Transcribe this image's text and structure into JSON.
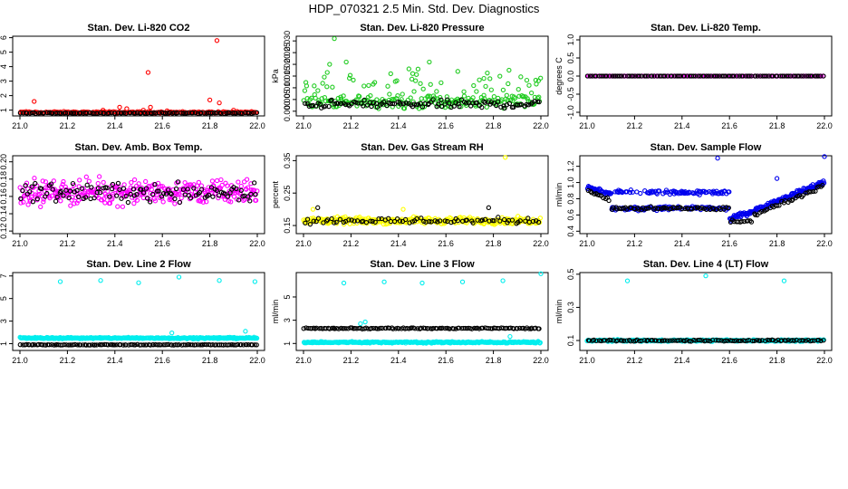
{
  "figure": {
    "title": "HDP_070321  2.5 Min. Std. Dev. Diagnostics"
  },
  "colors": {
    "red": "#ff0000",
    "green": "#22cc22",
    "magenta": "#ff00ff",
    "yellow": "#ffff00",
    "blue": "#0000ee",
    "cyan": "#00eeee",
    "black": "#000000"
  },
  "chart_data": [
    {
      "type": "scatter",
      "title": "Stan. Dev. Li-820 CO2",
      "ylabel": "Licor ppm",
      "xlim": [
        21.0,
        22.0
      ],
      "ylim": [
        0.6,
        6.1
      ],
      "xticks": [
        21.0,
        21.2,
        21.4,
        21.6,
        21.8,
        22.0
      ],
      "xtick_labels": [
        "21.0",
        "21.2",
        "21.4",
        "21.6",
        "21.8",
        "22.0"
      ],
      "yticks": [
        1,
        2,
        3,
        4,
        5,
        6
      ],
      "ytick_labels": [
        "1",
        "2",
        "3",
        "4",
        "5",
        "6"
      ],
      "series": [
        {
          "name": "primary",
          "color": "red",
          "n": 160,
          "base": 0.85,
          "noise": 0.08,
          "outliers": [
            [
              21.06,
              1.6
            ],
            [
              21.35,
              1.0
            ],
            [
              21.42,
              1.2
            ],
            [
              21.45,
              1.1
            ],
            [
              21.54,
              3.6
            ],
            [
              21.55,
              1.2
            ],
            [
              21.52,
              1.0
            ],
            [
              21.62,
              0.95
            ],
            [
              21.8,
              1.7
            ],
            [
              21.83,
              5.8
            ],
            [
              21.84,
              1.5
            ],
            [
              21.9,
              1.0
            ]
          ]
        },
        {
          "name": "secondary",
          "color": "black",
          "n": 110,
          "base": 0.8,
          "noise": 0.05
        }
      ]
    },
    {
      "type": "scatter",
      "title": "Stan. Dev. Li-820 Pressure",
      "ylabel": "kPa",
      "xlim": [
        21.0,
        22.0
      ],
      "ylim": [
        -0.002,
        0.032
      ],
      "xticks": [
        21.0,
        21.2,
        21.4,
        21.6,
        21.8,
        22.0
      ],
      "xtick_labels": [
        "21.0",
        "21.2",
        "21.4",
        "21.6",
        "21.8",
        "22.0"
      ],
      "yticks": [
        0.0,
        0.005,
        0.01,
        0.015,
        0.02,
        0.025,
        0.03
      ],
      "ytick_labels": [
        "0.000",
        "0.005",
        "0.010",
        "0.015",
        "0.020",
        "0.025",
        "0.030"
      ],
      "series": [
        {
          "name": "primary",
          "color": "green",
          "n": 260,
          "base": 0.004,
          "noise": 0.004,
          "spread": 0.012,
          "outliers": [
            [
              21.13,
              0.031
            ],
            [
              21.11,
              0.02
            ],
            [
              21.18,
              0.021
            ],
            [
              21.53,
              0.021
            ],
            [
              21.65,
              0.017
            ],
            [
              21.76,
              0.014
            ],
            [
              21.99,
              0.013
            ]
          ]
        },
        {
          "name": "secondary",
          "color": "black",
          "n": 110,
          "base": 0.003,
          "noise": 0.0025
        }
      ]
    },
    {
      "type": "scatter",
      "title": "Stan. Dev. Li-820 Temp.",
      "ylabel": "degrees C",
      "xlim": [
        21.0,
        22.0
      ],
      "ylim": [
        -1.1,
        1.1
      ],
      "xticks": [
        21.0,
        21.2,
        21.4,
        21.6,
        21.8,
        22.0
      ],
      "xtick_labels": [
        "21.0",
        "21.2",
        "21.4",
        "21.6",
        "21.8",
        "22.0"
      ],
      "yticks": [
        -1.0,
        -0.5,
        0.0,
        0.5,
        1.0
      ],
      "ytick_labels": [
        "-1.0",
        "-0.5",
        "0.0",
        "0.5",
        "1.0"
      ],
      "series": [
        {
          "name": "primary",
          "color": "magenta",
          "n": 120,
          "base": 0.0,
          "noise": 0.0
        },
        {
          "name": "secondary",
          "color": "black",
          "n": 110,
          "base": 0.0,
          "noise": 0.0
        }
      ]
    },
    {
      "type": "scatter",
      "title": "Stan. Dev. Amb. Box Temp.",
      "ylabel": "degrees C",
      "xlim": [
        21.0,
        22.0
      ],
      "ylim": [
        0.117,
        0.207
      ],
      "xticks": [
        21.0,
        21.2,
        21.4,
        21.6,
        21.8,
        22.0
      ],
      "xtick_labels": [
        "21.0",
        "21.2",
        "21.4",
        "21.6",
        "21.8",
        "22.0"
      ],
      "yticks": [
        0.12,
        0.14,
        0.16,
        0.18,
        0.2
      ],
      "ytick_labels": [
        "0.12",
        "0.14",
        "0.16",
        "0.18",
        "0.20"
      ],
      "series": [
        {
          "name": "primary",
          "color": "magenta",
          "n": 320,
          "base": 0.165,
          "noise": 0.02
        },
        {
          "name": "secondary",
          "color": "black",
          "n": 110,
          "base": 0.165,
          "noise": 0.016
        }
      ]
    },
    {
      "type": "scatter",
      "title": "Stan. Dev. Gas Stream RH",
      "ylabel": "percent",
      "xlim": [
        21.0,
        22.0
      ],
      "ylim": [
        0.125,
        0.365
      ],
      "xticks": [
        21.0,
        21.2,
        21.4,
        21.6,
        21.8,
        22.0
      ],
      "xtick_labels": [
        "21.0",
        "21.2",
        "21.4",
        "21.6",
        "21.8",
        "22.0"
      ],
      "yticks": [
        0.15,
        0.25,
        0.35
      ],
      "ytick_labels": [
        "0.15",
        "0.25",
        "0.35"
      ],
      "series": [
        {
          "name": "primary",
          "color": "yellow",
          "n": 320,
          "base": 0.165,
          "noise": 0.015,
          "outliers": [
            [
              21.85,
              0.36
            ],
            [
              21.04,
              0.2
            ],
            [
              21.42,
              0.2
            ]
          ]
        },
        {
          "name": "secondary",
          "color": "black",
          "n": 80,
          "base": 0.165,
          "noise": 0.014,
          "outliers": [
            [
              21.06,
              0.205
            ],
            [
              21.78,
              0.205
            ]
          ]
        }
      ]
    },
    {
      "type": "scatter",
      "title": "Stan. Dev. Sample Flow",
      "ylabel": "ml/min",
      "xlim": [
        21.0,
        22.0
      ],
      "ylim": [
        0.37,
        1.33
      ],
      "xticks": [
        21.0,
        21.2,
        21.4,
        21.6,
        21.8,
        22.0
      ],
      "xtick_labels": [
        "21.0",
        "21.2",
        "21.4",
        "21.6",
        "21.8",
        "22.0"
      ],
      "yticks": [
        0.4,
        0.6,
        0.8,
        1.0,
        1.2
      ],
      "ytick_labels": [
        "0.4",
        "0.6",
        "0.8",
        "1.0",
        "1.2"
      ],
      "series": [
        {
          "name": "primary",
          "color": "blue",
          "n": 360,
          "base": 0.8,
          "noise": 0.04,
          "profile": "sample-flow",
          "outliers": [
            [
              21.55,
              1.3
            ],
            [
              22.0,
              1.32
            ],
            [
              21.8,
              1.05
            ]
          ]
        },
        {
          "name": "secondary",
          "color": "black",
          "n": 120,
          "base": 0.7,
          "noise": 0.03,
          "profile": "sample-flow-low"
        }
      ]
    },
    {
      "type": "scatter",
      "title": "Stan. Dev. Line 2 Flow",
      "ylabel": "ml/min",
      "xlim": [
        21.0,
        22.0
      ],
      "ylim": [
        0.4,
        7.3
      ],
      "xticks": [
        21.0,
        21.2,
        21.4,
        21.6,
        21.8,
        22.0
      ],
      "xtick_labels": [
        "21.0",
        "21.2",
        "21.4",
        "21.6",
        "21.8",
        "22.0"
      ],
      "yticks": [
        1,
        3,
        5,
        7
      ],
      "ytick_labels": [
        "1",
        "3",
        "5",
        "7"
      ],
      "series": [
        {
          "name": "primary",
          "color": "cyan",
          "n": 320,
          "base": 1.5,
          "noise": 0.1,
          "outliers": [
            [
              21.17,
              6.5
            ],
            [
              21.34,
              6.6
            ],
            [
              21.5,
              6.4
            ],
            [
              21.67,
              6.9
            ],
            [
              21.84,
              6.6
            ],
            [
              21.99,
              6.5
            ],
            [
              21.64,
              1.95
            ],
            [
              21.95,
              2.1
            ]
          ]
        },
        {
          "name": "secondary",
          "color": "black",
          "n": 130,
          "base": 0.9,
          "noise": 0.04
        }
      ]
    },
    {
      "type": "scatter",
      "title": "Stan. Dev. Line 3 Flow",
      "ylabel": "ml/min",
      "xlim": [
        21.0,
        22.0
      ],
      "ylim": [
        0.4,
        7.1
      ],
      "xticks": [
        21.0,
        21.2,
        21.4,
        21.6,
        21.8,
        22.0
      ],
      "xtick_labels": [
        "21.0",
        "21.2",
        "21.4",
        "21.6",
        "21.8",
        "22.0"
      ],
      "yticks": [
        1,
        3,
        5
      ],
      "ytick_labels": [
        "1",
        "3",
        "5"
      ],
      "series": [
        {
          "name": "primary",
          "color": "cyan",
          "n": 320,
          "base": 1.1,
          "noise": 0.1,
          "outliers": [
            [
              21.17,
              6.2
            ],
            [
              21.34,
              6.3
            ],
            [
              21.5,
              6.2
            ],
            [
              21.67,
              6.3
            ],
            [
              21.84,
              6.4
            ],
            [
              22.0,
              7.0
            ],
            [
              21.26,
              2.85
            ],
            [
              21.24,
              2.7
            ],
            [
              21.87,
              1.6
            ]
          ]
        },
        {
          "name": "secondary",
          "color": "black",
          "n": 130,
          "base": 2.3,
          "noise": 0.08
        }
      ]
    },
    {
      "type": "scatter",
      "title": "Stan. Dev. Line 4 (LT) Flow",
      "ylabel": "ml/min",
      "xlim": [
        21.0,
        22.0
      ],
      "ylim": [
        0.04,
        0.51
      ],
      "xticks": [
        21.0,
        21.2,
        21.4,
        21.6,
        21.8,
        22.0
      ],
      "xtick_labels": [
        "21.0",
        "21.2",
        "21.4",
        "21.6",
        "21.8",
        "22.0"
      ],
      "yticks": [
        0.1,
        0.3,
        0.5
      ],
      "ytick_labels": [
        "0.1",
        "0.3",
        "0.5"
      ],
      "series": [
        {
          "name": "primary",
          "color": "cyan",
          "n": 300,
          "base": 0.1,
          "noise": 0.008,
          "outliers": [
            [
              21.17,
              0.46
            ],
            [
              21.5,
              0.49
            ],
            [
              21.83,
              0.46
            ]
          ]
        },
        {
          "name": "secondary",
          "color": "black",
          "n": 110,
          "base": 0.1,
          "noise": 0.006
        }
      ]
    }
  ]
}
